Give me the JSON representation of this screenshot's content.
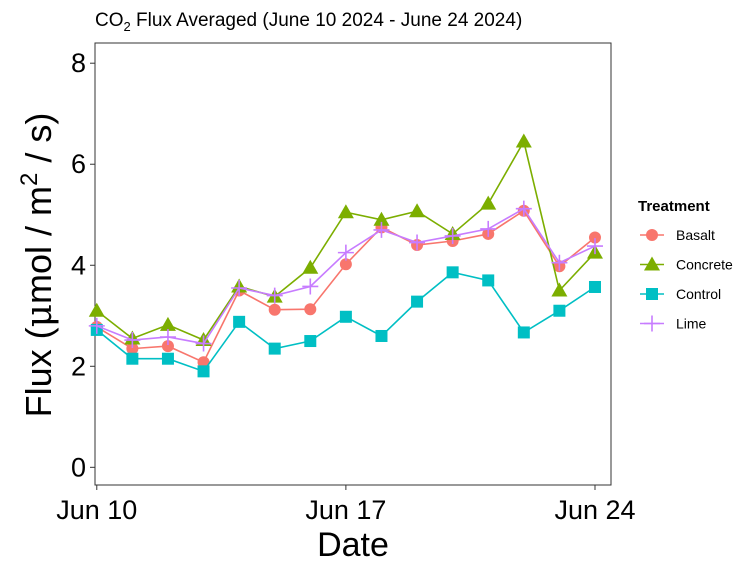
{
  "chart_data": {
    "type": "line",
    "title": {
      "prefix": "CO",
      "subscript": "2",
      "suffix": " Flux Averaged (June 10 2024 - June 24 2024)"
    },
    "xlabel": "Date",
    "ylabel": {
      "prefix": "Flux (",
      "mu": "μ",
      "unit_a": "mol / m",
      "superscript": "2",
      "unit_b": " / s)"
    },
    "x": [
      10,
      11,
      12,
      13,
      14,
      15,
      16,
      17,
      18,
      19,
      20,
      21,
      22,
      23,
      24
    ],
    "xlim": [
      9.95,
      24.45
    ],
    "ylim": [
      -0.35,
      8.4
    ],
    "x_ticks": [
      {
        "value": 10,
        "label": "Jun 10"
      },
      {
        "value": 17,
        "label": "Jun 17"
      },
      {
        "value": 24,
        "label": "Jun 24"
      }
    ],
    "y_ticks": [
      {
        "value": 0,
        "label": "0"
      },
      {
        "value": 2,
        "label": "2"
      },
      {
        "value": 4,
        "label": "4"
      },
      {
        "value": 6,
        "label": "6"
      },
      {
        "value": 8,
        "label": "8"
      }
    ],
    "grid": false,
    "legend": {
      "title": "Treatment",
      "position": "right"
    },
    "series": [
      {
        "name": "Basalt",
        "color": "#F8766D",
        "marker": "circle",
        "values": [
          2.78,
          2.35,
          2.4,
          2.08,
          3.5,
          3.12,
          3.13,
          4.02,
          4.75,
          4.4,
          4.48,
          4.62,
          5.08,
          3.98,
          4.55
        ]
      },
      {
        "name": "Concrete",
        "color": "#7CAE00",
        "marker": "triangle",
        "values": [
          3.1,
          2.55,
          2.82,
          2.52,
          3.58,
          3.38,
          3.95,
          5.05,
          4.9,
          5.07,
          4.62,
          5.22,
          6.45,
          3.5,
          4.25
        ]
      },
      {
        "name": "Control",
        "color": "#00BFC4",
        "marker": "square",
        "values": [
          2.72,
          2.15,
          2.15,
          1.9,
          2.88,
          2.35,
          2.5,
          2.98,
          2.6,
          3.28,
          3.86,
          3.7,
          2.67,
          3.1,
          3.57
        ]
      },
      {
        "name": "Lime",
        "color": "#C77CFF",
        "marker": "plus",
        "values": [
          2.8,
          2.52,
          2.58,
          2.45,
          3.55,
          3.4,
          3.58,
          4.25,
          4.7,
          4.45,
          4.58,
          4.72,
          5.12,
          4.05,
          4.38
        ]
      }
    ]
  }
}
